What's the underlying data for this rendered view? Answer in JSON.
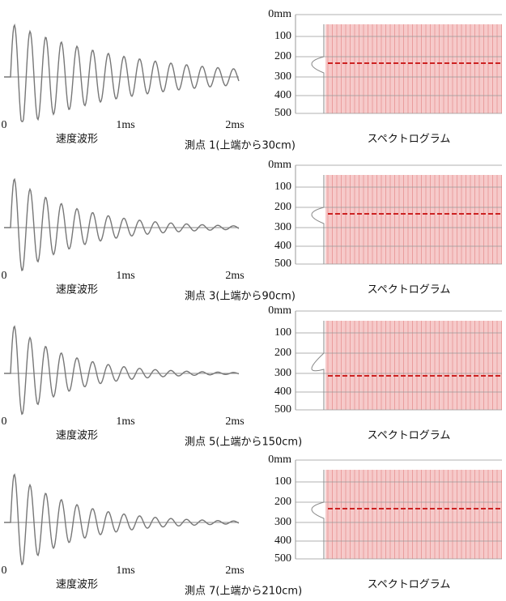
{
  "panels": [
    {
      "waveform": {
        "x_labels": [
          "0",
          "1ms",
          "2ms"
        ],
        "caption": "速度波形"
      },
      "point_label": "測点 1(上端から30cm)",
      "spectrogram": {
        "y_labels": [
          "0mm",
          "100",
          "200",
          "300",
          "400",
          "500"
        ],
        "caption": "スペクトログラム"
      }
    },
    {
      "waveform": {
        "x_labels": [
          "0",
          "1ms",
          "2ms"
        ],
        "caption": "速度波形"
      },
      "point_label": "測点 3(上端から90cm)",
      "spectrogram": {
        "y_labels": [
          "0mm",
          "100",
          "200",
          "300",
          "400",
          "500"
        ],
        "caption": "スペクトログラム"
      }
    },
    {
      "waveform": {
        "x_labels": [
          "0",
          "1ms",
          "2ms"
        ],
        "caption": "速度波形"
      },
      "point_label": "測点 5(上端から150cm)",
      "spectrogram": {
        "y_labels": [
          "0mm",
          "100",
          "200",
          "300",
          "400",
          "500"
        ],
        "caption": "スペクトログラム"
      }
    },
    {
      "waveform": {
        "x_labels": [
          "0",
          "1ms",
          "2ms"
        ],
        "caption": "速度波形"
      },
      "point_label": "測点 7(上端から210cm)",
      "spectrogram": {
        "y_labels": [
          "0mm",
          "100",
          "200",
          "300",
          "400",
          "500"
        ],
        "caption": "スペクトログラム"
      }
    }
  ]
}
